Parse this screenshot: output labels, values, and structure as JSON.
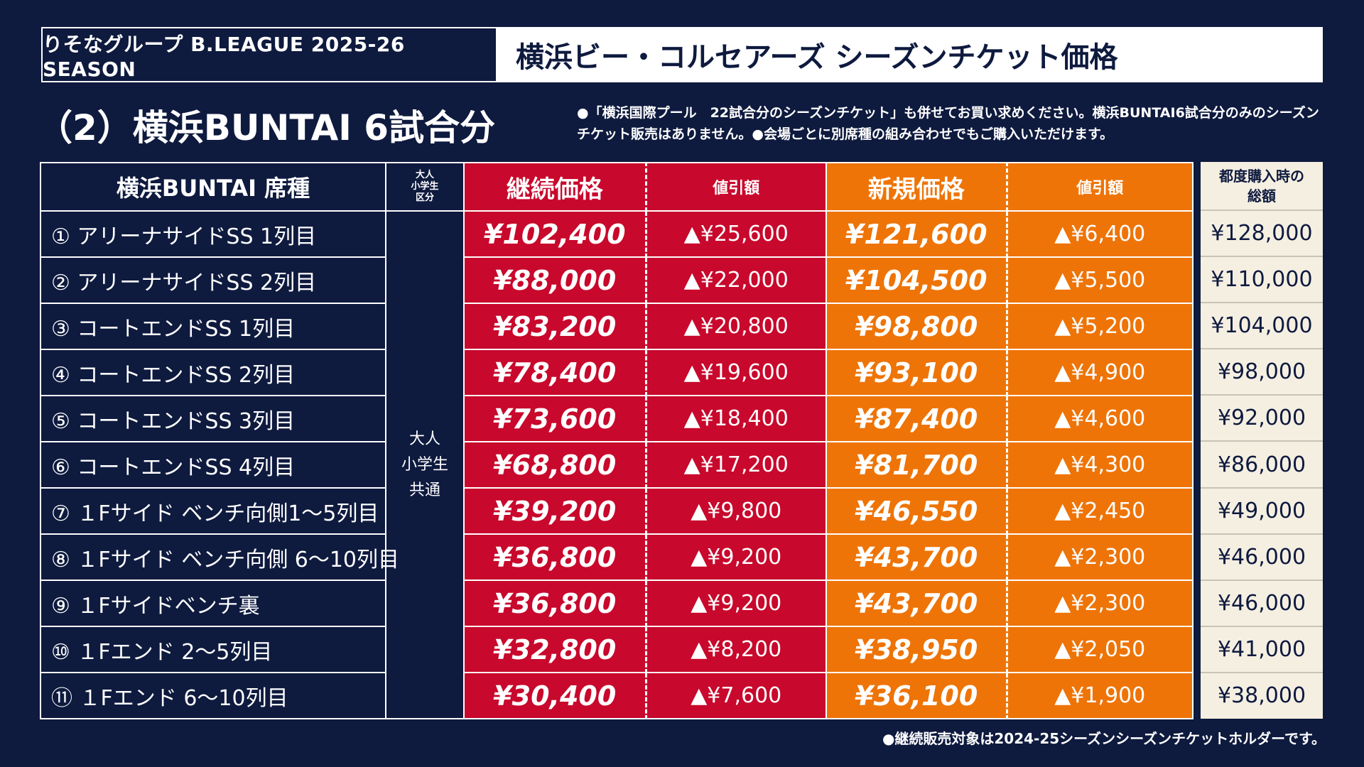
{
  "header": {
    "league": "りそなグループ B.LEAGUE 2025-26 SEASON",
    "title": "横浜ビー・コルセアーズ シーズンチケット価格"
  },
  "subtitle": "（2）横浜BUNTAI 6試合分",
  "note": "●「横浜国際プール　22試合分のシーズンチケット」も併せてお買い求めください。横浜BUNTAI6試合分のみのシーズンチケット販売はありません。●会場ごとに別席種の組み合わせでもご購入いただけます。",
  "table": {
    "headers": {
      "seat": "横浜BUNTAI 席種",
      "category": "大人\n小学生\n区分",
      "renewal_price": "継続価格",
      "renewal_discount": "値引額",
      "new_price": "新規価格",
      "new_discount": "値引額",
      "single_total": "都度購入時の\n総額"
    },
    "category_value": "大人\n小学生\n共通",
    "rows": [
      {
        "seat": "① アリーナサイドSS 1列目",
        "renewal": "¥102,400",
        "renewal_disc": "▲¥25,600",
        "new": "¥121,600",
        "new_disc": "▲¥6,400",
        "total": "¥128,000"
      },
      {
        "seat": "② アリーナサイドSS 2列目",
        "renewal": "¥88,000",
        "renewal_disc": "▲¥22,000",
        "new": "¥104,500",
        "new_disc": "▲¥5,500",
        "total": "¥110,000"
      },
      {
        "seat": "③ コートエンドSS 1列目",
        "renewal": "¥83,200",
        "renewal_disc": "▲¥20,800",
        "new": "¥98,800",
        "new_disc": "▲¥5,200",
        "total": "¥104,000"
      },
      {
        "seat": "④ コートエンドSS 2列目",
        "renewal": "¥78,400",
        "renewal_disc": "▲¥19,600",
        "new": "¥93,100",
        "new_disc": "▲¥4,900",
        "total": "¥98,000"
      },
      {
        "seat": "⑤ コートエンドSS 3列目",
        "renewal": "¥73,600",
        "renewal_disc": "▲¥18,400",
        "new": "¥87,400",
        "new_disc": "▲¥4,600",
        "total": "¥92,000"
      },
      {
        "seat": "⑥ コートエンドSS 4列目",
        "renewal": "¥68,800",
        "renewal_disc": "▲¥17,200",
        "new": "¥81,700",
        "new_disc": "▲¥4,300",
        "total": "¥86,000"
      },
      {
        "seat": "⑦ １Fサイド ベンチ向側1〜5列目",
        "renewal": "¥39,200",
        "renewal_disc": "▲¥9,800",
        "new": "¥46,550",
        "new_disc": "▲¥2,450",
        "total": "¥49,000"
      },
      {
        "seat": "⑧ １Fサイド ベンチ向側 6〜10列目",
        "renewal": "¥36,800",
        "renewal_disc": "▲¥9,200",
        "new": "¥43,700",
        "new_disc": "▲¥2,300",
        "total": "¥46,000"
      },
      {
        "seat": "⑨ １Fサイドベンチ裏",
        "renewal": "¥36,800",
        "renewal_disc": "▲¥9,200",
        "new": "¥43,700",
        "new_disc": "▲¥2,300",
        "total": "¥46,000"
      },
      {
        "seat": "⑩ １Fエンド 2〜5列目",
        "renewal": "¥32,800",
        "renewal_disc": "▲¥8,200",
        "new": "¥38,950",
        "new_disc": "▲¥2,050",
        "total": "¥41,000"
      },
      {
        "seat": "⑪ １Fエンド 6〜10列目",
        "renewal": "¥30,400",
        "renewal_disc": "▲¥7,600",
        "new": "¥36,100",
        "new_disc": "▲¥1,900",
        "total": "¥38,000"
      }
    ]
  },
  "footer": "●継続販売対象は2024-25シーズンシーズンチケットホルダーです。",
  "colors": {
    "navy": "#0e1a3e",
    "red": "#c8082c",
    "orange": "#ee7407",
    "cream": "#f5efe2"
  }
}
